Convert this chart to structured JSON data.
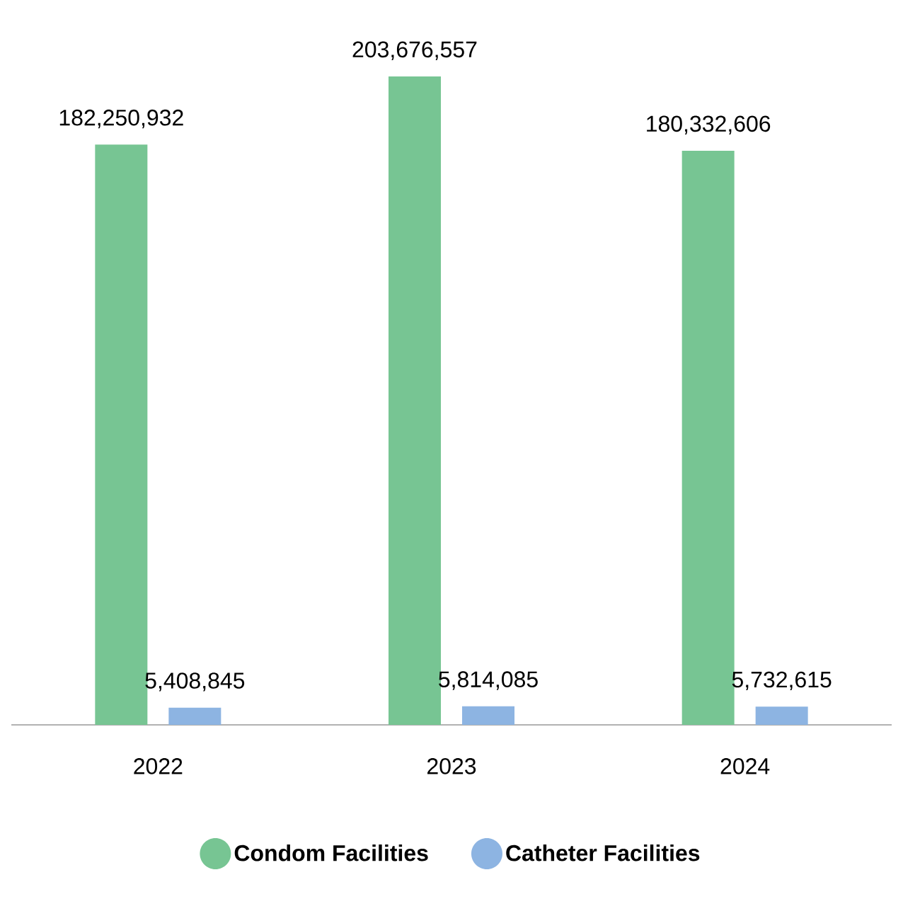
{
  "chart_data": {
    "type": "bar",
    "categories": [
      "2022",
      "2023",
      "2024"
    ],
    "series": [
      {
        "name": "Condom Facilities",
        "color": "#77c593",
        "values": [
          182250932,
          203676557,
          180332606
        ],
        "value_labels": [
          "182,250,932",
          "203,676,557",
          "180,332,606"
        ]
      },
      {
        "name": "Catheter Facilities",
        "color": "#8db4e2",
        "values": [
          5408845,
          5814085,
          5732615
        ],
        "value_labels": [
          "5,408,845",
          "5,814,085",
          "5,732,615"
        ]
      }
    ],
    "legend": "bottom",
    "tick_labels": "x"
  }
}
